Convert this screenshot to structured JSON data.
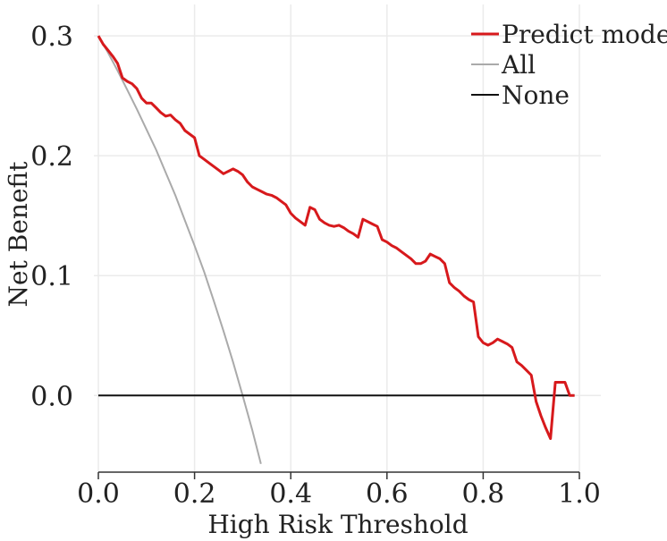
{
  "chart_data": {
    "type": "line",
    "xlabel": "High Risk Threshold",
    "ylabel": "Net Benefit",
    "xlim": [
      0.0,
      1.0
    ],
    "ylim": [
      -0.058,
      0.315
    ],
    "xticks": [
      0.0,
      0.2,
      0.4,
      0.6,
      0.8,
      1.0
    ],
    "xtick_labels": [
      "0.0",
      "0.2",
      "0.4",
      "0.6",
      "0.8",
      "1.0"
    ],
    "yticks": [
      0.0,
      0.1,
      0.2,
      0.3
    ],
    "ytick_labels": [
      "0.0",
      "0.1",
      "0.2",
      "0.3"
    ],
    "grid": true,
    "legend_position": "top-right",
    "series": [
      {
        "name": "Predict model",
        "color": "#d7191c",
        "x": [
          0.0,
          0.01,
          0.02,
          0.03,
          0.04,
          0.05,
          0.06,
          0.07,
          0.08,
          0.09,
          0.1,
          0.11,
          0.12,
          0.13,
          0.14,
          0.15,
          0.16,
          0.17,
          0.18,
          0.19,
          0.2,
          0.21,
          0.22,
          0.23,
          0.24,
          0.25,
          0.26,
          0.27,
          0.28,
          0.29,
          0.3,
          0.31,
          0.32,
          0.33,
          0.34,
          0.35,
          0.36,
          0.37,
          0.38,
          0.39,
          0.4,
          0.41,
          0.42,
          0.43,
          0.44,
          0.45,
          0.46,
          0.47,
          0.48,
          0.49,
          0.5,
          0.51,
          0.52,
          0.53,
          0.54,
          0.55,
          0.56,
          0.57,
          0.58,
          0.59,
          0.6,
          0.61,
          0.62,
          0.63,
          0.64,
          0.65,
          0.66,
          0.67,
          0.68,
          0.69,
          0.7,
          0.71,
          0.72,
          0.73,
          0.74,
          0.75,
          0.76,
          0.77,
          0.78,
          0.79,
          0.8,
          0.81,
          0.82,
          0.83,
          0.84,
          0.85,
          0.86,
          0.87,
          0.88,
          0.89,
          0.9,
          0.91,
          0.92,
          0.93,
          0.94,
          0.95,
          0.96,
          0.97,
          0.98,
          0.99
        ],
        "y": [
          0.3,
          0.293,
          0.288,
          0.283,
          0.277,
          0.265,
          0.262,
          0.26,
          0.256,
          0.248,
          0.244,
          0.244,
          0.24,
          0.236,
          0.233,
          0.234,
          0.23,
          0.227,
          0.221,
          0.218,
          0.215,
          0.2,
          0.197,
          0.194,
          0.191,
          0.188,
          0.185,
          0.187,
          0.189,
          0.187,
          0.184,
          0.178,
          0.174,
          0.172,
          0.17,
          0.168,
          0.167,
          0.165,
          0.162,
          0.159,
          0.152,
          0.148,
          0.145,
          0.142,
          0.157,
          0.155,
          0.147,
          0.144,
          0.142,
          0.141,
          0.142,
          0.14,
          0.137,
          0.135,
          0.132,
          0.147,
          0.145,
          0.143,
          0.141,
          0.13,
          0.128,
          0.125,
          0.123,
          0.12,
          0.117,
          0.114,
          0.11,
          0.11,
          0.112,
          0.118,
          0.116,
          0.114,
          0.11,
          0.094,
          0.09,
          0.087,
          0.083,
          0.08,
          0.078,
          0.049,
          0.044,
          0.042,
          0.044,
          0.047,
          0.045,
          0.043,
          0.04,
          0.028,
          0.025,
          0.021,
          0.017,
          -0.005,
          -0.017,
          -0.027,
          -0.036,
          0.011,
          0.011,
          0.011,
          0.0,
          0.0
        ]
      },
      {
        "name": "All",
        "color": "#aaaaaa",
        "x": [
          0.0,
          0.02,
          0.04,
          0.06,
          0.08,
          0.1,
          0.12,
          0.14,
          0.16,
          0.18,
          0.2,
          0.22,
          0.24,
          0.26,
          0.28,
          0.3,
          0.32,
          0.338
        ],
        "y": [
          0.3,
          0.286,
          0.271,
          0.255,
          0.239,
          0.222,
          0.205,
          0.186,
          0.167,
          0.146,
          0.125,
          0.103,
          0.079,
          0.054,
          0.028,
          0.0,
          -0.029,
          -0.057
        ]
      },
      {
        "name": "None",
        "color": "#111111",
        "x": [
          0.0,
          0.99
        ],
        "y": [
          0.0,
          0.0
        ]
      }
    ]
  }
}
